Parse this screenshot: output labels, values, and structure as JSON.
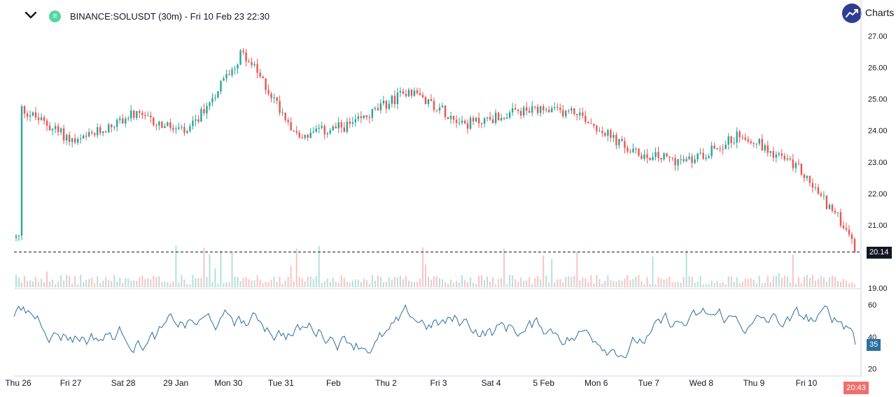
{
  "header": {
    "title": "BINANCE:SOLUSDT (30m) - Fri 10 Feb 23 22:30",
    "collapse_icon": "chevron-down-icon",
    "symbol_icon": "sol-coin-icon",
    "brand_text": "Charts",
    "brand_icon": "trend-up-icon"
  },
  "price_axis": {
    "ticks": [
      "27.00",
      "26.00",
      "25.00",
      "24.00",
      "23.00",
      "22.00",
      "21.00",
      "19.00"
    ],
    "current_price": "20.14"
  },
  "indicator_axis": {
    "ticks": [
      "60",
      "40",
      "20"
    ],
    "current_value": "35"
  },
  "time_axis": {
    "labels": [
      "Thu 26",
      "Fri 27",
      "Sat 28",
      "29 Jan",
      "Mon 30",
      "Tue 31",
      "Feb",
      "Thu 2",
      "Fri 3",
      "Sat 4",
      "5 Feb",
      "Mon 6",
      "Tue 7",
      "Wed 8",
      "Thu 9",
      "Fri 10"
    ],
    "cursor_time": "20:43"
  },
  "colors": {
    "up": "#26a69a",
    "down": "#ef5350",
    "indicator": "#2a6fa0",
    "brand": "#2f3d92",
    "time_tag": "#ef6f6c"
  },
  "chart_data": {
    "type": "candlestick",
    "symbol": "BINANCE:SOLUSDT",
    "interval": "30m",
    "price_ylim": [
      19.0,
      27.3
    ],
    "last_price": 20.14,
    "price_path": [
      {
        "x": "Thu 26",
        "y": 24.7
      },
      {
        "x": "Fri 27",
        "y": 23.6
      },
      {
        "x": "Sat 28",
        "y": 24.5
      },
      {
        "x": "29 Jan",
        "y": 23.9
      },
      {
        "x": "Mon 30",
        "y": 26.5
      },
      {
        "x": "Tue 31",
        "y": 23.8
      },
      {
        "x": "Feb",
        "y": 24.2
      },
      {
        "x": "Thu 2",
        "y": 25.3
      },
      {
        "x": "Fri 3",
        "y": 24.2
      },
      {
        "x": "Sat 4",
        "y": 24.6
      },
      {
        "x": "5 Feb",
        "y": 24.6
      },
      {
        "x": "Mon 6",
        "y": 23.3
      },
      {
        "x": "Tue 7",
        "y": 23.0
      },
      {
        "x": "Wed 8",
        "y": 23.9
      },
      {
        "x": "Thu 9",
        "y": 22.8
      },
      {
        "x": "Fri 10",
        "y": 20.6
      }
    ],
    "indicator_ylim": [
      18,
      68
    ],
    "indicator_last": 35
  }
}
